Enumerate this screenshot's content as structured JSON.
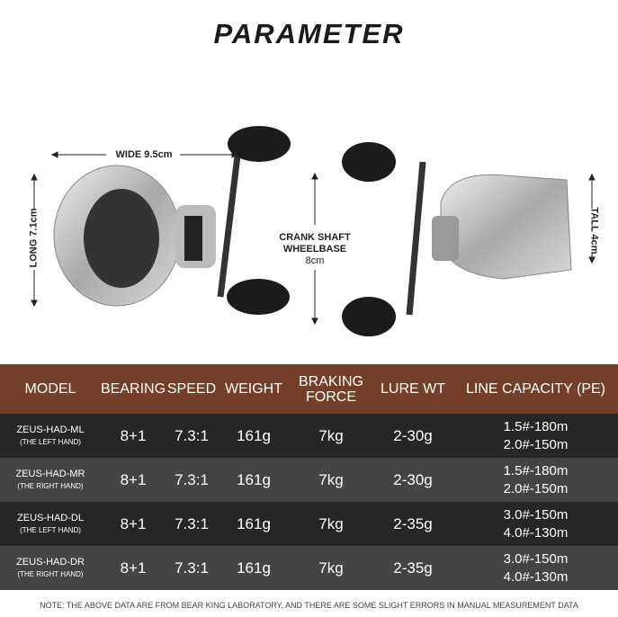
{
  "title": "PARAMETER",
  "dimensions": {
    "wide": "WIDE 9.5cm",
    "long": "LONG 7.1cm",
    "crank_line1": "CRANK SHAFT",
    "crank_line2": "WHEELBASE",
    "crank_value": "8cm",
    "tall": "TALL 4cm"
  },
  "table": {
    "headers": [
      "MODEL",
      "BEARING",
      "SPEED",
      "WEIGHT",
      "BRAKING FORCE",
      "LURE WT",
      "LINE CAPACITY (PE)"
    ],
    "rows": [
      {
        "model": "ZEUS-HAD-ML",
        "hand": "(THE LEFT HAND)",
        "bearing": "8+1",
        "speed": "7.3:1",
        "weight": "161g",
        "braking": "7kg",
        "lure": "2-30g",
        "cap1": "1.5#-180m",
        "cap2": "2.0#-150m"
      },
      {
        "model": "ZEUS-HAD-MR",
        "hand": "(THE RIGHT HAND)",
        "bearing": "8+1",
        "speed": "7.3:1",
        "weight": "161g",
        "braking": "7kg",
        "lure": "2-30g",
        "cap1": "1.5#-180m",
        "cap2": "2.0#-150m"
      },
      {
        "model": "ZEUS-HAD-DL",
        "hand": "(THE LEFT HAND)",
        "bearing": "8+1",
        "speed": "7.3:1",
        "weight": "161g",
        "braking": "7kg",
        "lure": "2-35g",
        "cap1": "3.0#-150m",
        "cap2": "4.0#-130m"
      },
      {
        "model": "ZEUS-HAD-DR",
        "hand": "(THE RIGHT HAND)",
        "bearing": "8+1",
        "speed": "7.3:1",
        "weight": "161g",
        "braking": "7kg",
        "lure": "2-35g",
        "cap1": "3.0#-150m",
        "cap2": "4.0#-130m"
      }
    ]
  },
  "note": "NOTE: THE ABOVE DATA ARE FROM BEAR KING LABORATORY, AND THERE ARE SOME SLIGHT ERRORS IN MANUAL MEASUREMENT DATA",
  "colors": {
    "header": "#733f28",
    "row_dark": "#262626",
    "row_light": "#444444"
  }
}
